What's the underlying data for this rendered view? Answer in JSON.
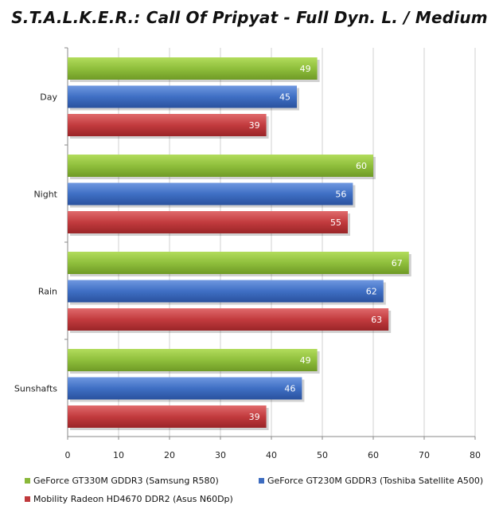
{
  "chart_data": {
    "type": "bar",
    "orientation": "horizontal",
    "title": "S.T.A.L.K.E.R.: Call Of Pripyat - Full Dyn. L. / Medium",
    "categories": [
      "Day",
      "Night",
      "Rain",
      "Sunshafts"
    ],
    "series": [
      {
        "name": "GeForce GT330M GDDR3 (Samsung R580)",
        "values": [
          49,
          60,
          67,
          49
        ],
        "color": "#8ab83a"
      },
      {
        "name": "GeForce GT230M GDDR3 (Toshiba Satellite A500)",
        "values": [
          45,
          56,
          62,
          46
        ],
        "color": "#3d6cc0"
      },
      {
        "name": "Mobility Radeon HD4670 DDR2 (Asus N60Dp)",
        "values": [
          39,
          55,
          63,
          39
        ],
        "color": "#c0393c"
      }
    ],
    "xlim": [
      0,
      80
    ],
    "xticks": [
      0,
      10,
      20,
      30,
      40,
      50,
      60,
      70,
      80
    ],
    "grid": true,
    "legend_position": "bottom"
  }
}
